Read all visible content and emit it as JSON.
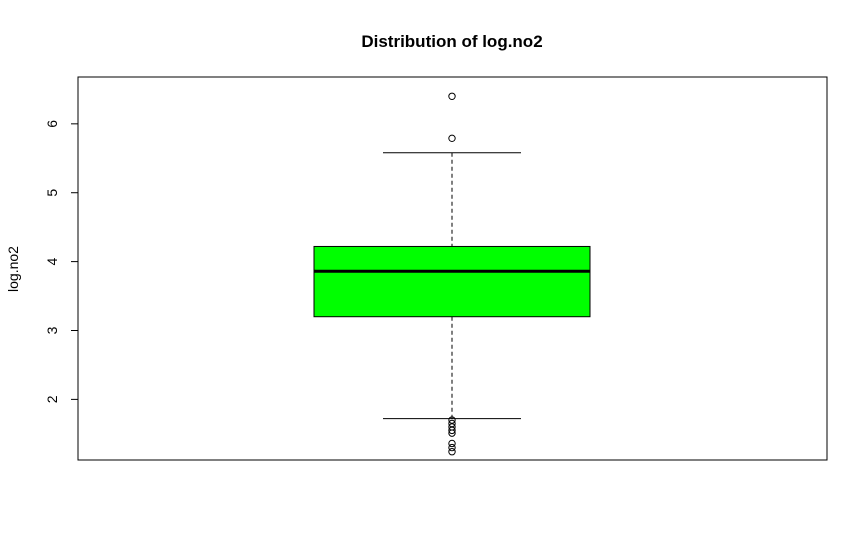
{
  "chart_data": {
    "type": "box",
    "title": "Distribution of log.no2",
    "xlabel": "",
    "ylabel": "log.no2",
    "ylim": [
      1.12,
      6.68
    ],
    "yticks": [
      "2",
      "3",
      "4",
      "5",
      "6"
    ],
    "box": {
      "whisker_low": 1.72,
      "q1": 3.2,
      "median": 3.86,
      "q3": 4.22,
      "whisker_high": 5.58,
      "fill": "#00ff00",
      "outliers": [
        6.4,
        5.79,
        1.7,
        1.65,
        1.6,
        1.55,
        1.51,
        1.36,
        1.3,
        1.24
      ]
    },
    "grid": false,
    "legend": "none"
  }
}
